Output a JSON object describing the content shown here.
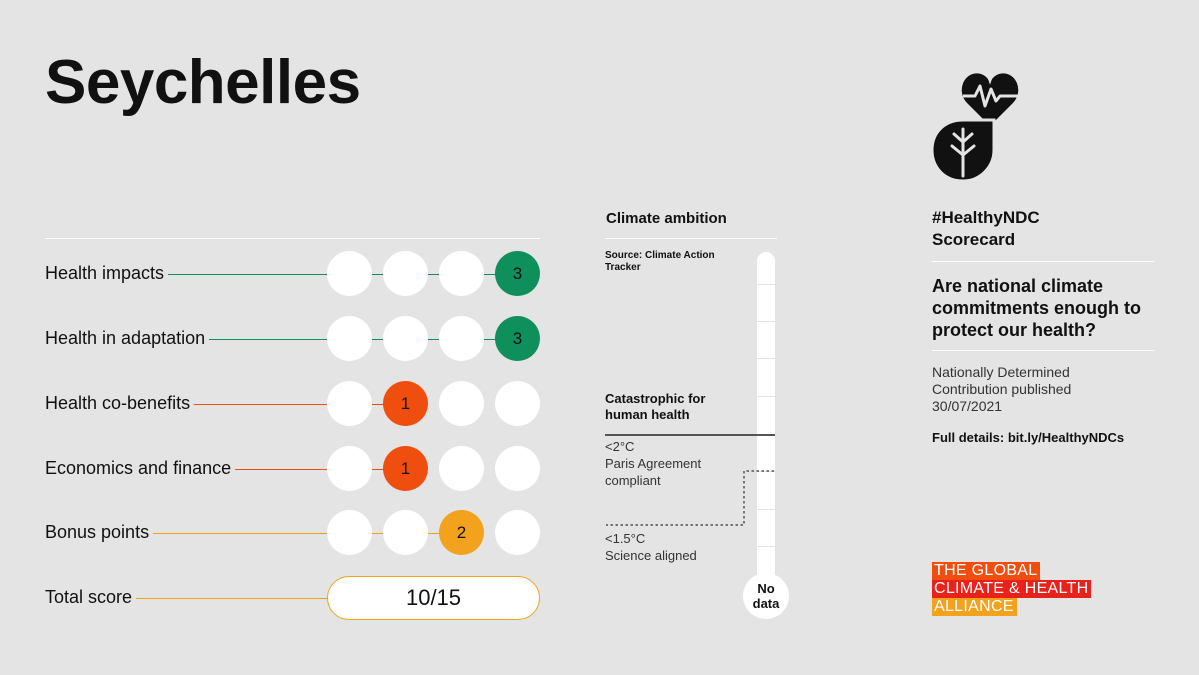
{
  "page": {
    "title": "Seychelles"
  },
  "scorecard": {
    "rows": [
      {
        "label": "Health impacts",
        "score": "3",
        "filled_index": 3,
        "color": "#0e8f5b"
      },
      {
        "label": "Health in adaptation",
        "score": "3",
        "filled_index": 3,
        "color": "#0e8f5b"
      },
      {
        "label": "Health co-benefits",
        "score": "1",
        "filled_index": 1,
        "color": "#f04e0f"
      },
      {
        "label": "Economics and finance",
        "score": "1",
        "filled_index": 1,
        "color": "#f04e0f"
      },
      {
        "label": "Bonus points",
        "score": "2",
        "filled_index": 2,
        "color": "#f3a21d"
      }
    ],
    "total": {
      "label": "Total score",
      "value": "10/15",
      "color": "#f3a21d"
    }
  },
  "climate": {
    "title": "Climate ambition",
    "source": "Source: Climate Action Tracker",
    "catastrophic": "Catastrophic for human health",
    "paris": {
      "line1": "<2°C",
      "line2": "Paris Agreement",
      "line3": "compliant"
    },
    "science": {
      "line1": "<1.5°C",
      "line2": "Science aligned"
    },
    "no_data": {
      "line1": "No",
      "line2": "data"
    }
  },
  "sidebar": {
    "logo_icon": "heart-leaf-logo-icon",
    "hashtag_line1": "#HealthyNDC",
    "hashtag_line2": "Scorecard",
    "question": "Are national climate commitments enough to protect our health?",
    "ndc_line1": "Nationally Determined",
    "ndc_line2": "Contribution published",
    "ndc_date": "30/07/2021",
    "details": "Full details: bit.ly/HealthyNDCs",
    "alliance": {
      "line1": "THE GLOBAL",
      "line2": "CLIMATE & HEALTH",
      "line3": "ALLIANCE",
      "colors": [
        "#f04e0f",
        "#e8221b",
        "#f3a21d"
      ]
    }
  }
}
